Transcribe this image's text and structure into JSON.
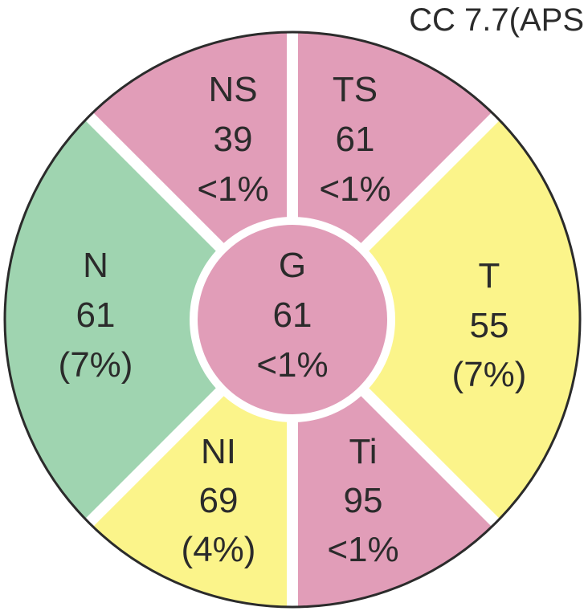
{
  "header": {
    "label": "CC 7.7(APS"
  },
  "colors": {
    "outline": "#2b2b2b",
    "separator": "#ffffff",
    "text": "#2b2b2b"
  },
  "sectors": [
    {
      "key": "ns",
      "name": "NS",
      "value": "39",
      "pct": "<1%",
      "color": "#e19db8"
    },
    {
      "key": "ts",
      "name": "TS",
      "value": "61",
      "pct": "<1%",
      "color": "#e19db8"
    },
    {
      "key": "t",
      "name": "T",
      "value": "55",
      "pct": "(7%)",
      "color": "#fbf48a"
    },
    {
      "key": "ti",
      "name": "Ti",
      "value": "95",
      "pct": "<1%",
      "color": "#e19db8"
    },
    {
      "key": "ni",
      "name": "NI",
      "value": "69",
      "pct": "(4%)",
      "color": "#fbf48a"
    },
    {
      "key": "n",
      "name": "N",
      "value": "61",
      "pct": "(7%)",
      "color": "#9fd4b0"
    }
  ],
  "center": {
    "name": "G",
    "value": "61",
    "pct": "<1%",
    "color": "#e19db8"
  }
}
